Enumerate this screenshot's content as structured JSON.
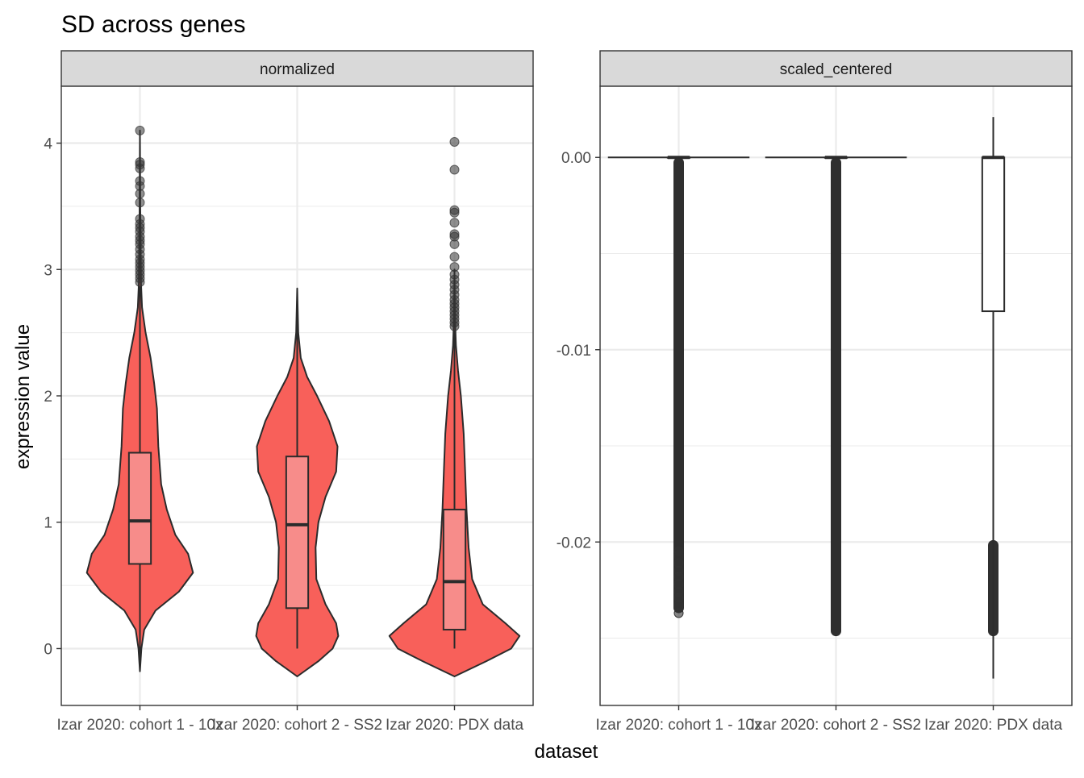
{
  "title": "SD across genes",
  "xlabel": "dataset",
  "ylabel": "expression value",
  "colors": {
    "violin_fill": "#F8605A",
    "box_fill": "#F78C8A",
    "outline": "#2B2B2B",
    "strip_bg": "#D9D9D9",
    "grid": "#EBEBEB"
  },
  "chart_data": [
    {
      "type": "violin",
      "panel": "normalized",
      "categories": [
        "Izar 2020: cohort 1 - 10x",
        "Izar 2020: cohort 2 - SS2",
        "Izar 2020: PDX data"
      ],
      "ylim": [
        -0.45,
        4.45
      ],
      "yticks": [
        0,
        1,
        2,
        3,
        4
      ],
      "grid": true,
      "violins": [
        {
          "min": -0.18,
          "max": 4.1,
          "profile": [
            [
              -0.18,
              0.0
            ],
            [
              0.0,
              0.02
            ],
            [
              0.15,
              0.06
            ],
            [
              0.3,
              0.22
            ],
            [
              0.45,
              0.55
            ],
            [
              0.6,
              0.75
            ],
            [
              0.75,
              0.68
            ],
            [
              0.9,
              0.5
            ],
            [
              1.1,
              0.38
            ],
            [
              1.3,
              0.3
            ],
            [
              1.6,
              0.26
            ],
            [
              1.9,
              0.24
            ],
            [
              2.1,
              0.2
            ],
            [
              2.3,
              0.15
            ],
            [
              2.5,
              0.08
            ],
            [
              2.7,
              0.03
            ],
            [
              2.9,
              0.015
            ],
            [
              3.5,
              0.005
            ],
            [
              4.1,
              0.0
            ]
          ]
        },
        {
          "min": -0.22,
          "max": 2.85,
          "profile": [
            [
              -0.22,
              0.0
            ],
            [
              -0.1,
              0.3
            ],
            [
              0.0,
              0.5
            ],
            [
              0.1,
              0.58
            ],
            [
              0.2,
              0.55
            ],
            [
              0.35,
              0.4
            ],
            [
              0.55,
              0.27
            ],
            [
              0.8,
              0.26
            ],
            [
              1.0,
              0.3
            ],
            [
              1.2,
              0.4
            ],
            [
              1.4,
              0.55
            ],
            [
              1.6,
              0.57
            ],
            [
              1.8,
              0.45
            ],
            [
              2.0,
              0.28
            ],
            [
              2.15,
              0.14
            ],
            [
              2.3,
              0.05
            ],
            [
              2.5,
              0.015
            ],
            [
              2.85,
              0.0
            ]
          ]
        },
        {
          "min": -0.22,
          "max": 4.0,
          "profile": [
            [
              -0.22,
              0.0
            ],
            [
              -0.1,
              0.45
            ],
            [
              0.0,
              0.8
            ],
            [
              0.1,
              0.92
            ],
            [
              0.2,
              0.72
            ],
            [
              0.35,
              0.4
            ],
            [
              0.55,
              0.25
            ],
            [
              0.8,
              0.2
            ],
            [
              1.1,
              0.17
            ],
            [
              1.4,
              0.15
            ],
            [
              1.7,
              0.13
            ],
            [
              2.0,
              0.09
            ],
            [
              2.2,
              0.05
            ],
            [
              2.4,
              0.02
            ],
            [
              2.6,
              0.008
            ],
            [
              3.0,
              0.0
            ]
          ]
        }
      ],
      "boxes": [
        {
          "q1": 0.67,
          "median": 1.01,
          "q3": 1.55,
          "whisker_low": -0.18,
          "whisker_high": 2.87,
          "outliers": [
            2.9,
            2.93,
            2.96,
            2.99,
            3.02,
            3.05,
            3.08,
            3.12,
            3.16,
            3.2,
            3.23,
            3.26,
            3.3,
            3.33,
            3.36,
            3.4,
            3.53,
            3.6,
            3.66,
            3.7,
            3.8,
            3.83,
            3.85,
            4.1
          ]
        },
        {
          "q1": 0.32,
          "median": 0.98,
          "q3": 1.52,
          "whisker_low": 0.0,
          "whisker_high": 2.84,
          "outliers": []
        },
        {
          "q1": 0.15,
          "median": 0.53,
          "q3": 1.1,
          "whisker_low": 0.0,
          "whisker_high": 2.52,
          "outliers": [
            2.55,
            2.58,
            2.61,
            2.64,
            2.67,
            2.7,
            2.73,
            2.76,
            2.8,
            2.84,
            2.88,
            2.92,
            2.96,
            3.02,
            3.1,
            3.2,
            3.26,
            3.28,
            3.37,
            3.45,
            3.47,
            3.79,
            4.01
          ]
        }
      ]
    },
    {
      "type": "box",
      "panel": "scaled_centered",
      "categories": [
        "Izar 2020: cohort 1 - 10x",
        "Izar 2020: cohort 2 - SS2",
        "Izar 2020: PDX data"
      ],
      "ylim": [
        -0.0285,
        0.0037
      ],
      "yticks": [
        0.0,
        -0.01,
        -0.02
      ],
      "ytick_labels": [
        "0.00",
        "-0.01",
        "-0.02"
      ],
      "grid": true,
      "violins": [
        {
          "flat_at": 0.0,
          "max_half_width": 0.9
        },
        {
          "flat_at": 0.0,
          "max_half_width": 0.9
        },
        null
      ],
      "boxes": [
        {
          "q1": 0.0,
          "median": 0.0,
          "q3": 0.0,
          "whisker_low": 0.0,
          "whisker_high": 0.0,
          "outlier_range": [
            -0.0237,
            0.0
          ],
          "outlier_scattered": [
            -0.0237,
            -0.0233,
            -0.0229,
            -0.0226,
            -0.0222,
            -0.0218,
            -0.0215,
            -0.0211,
            -0.0207,
            -0.0205
          ]
        },
        {
          "q1": 0.0,
          "median": 0.0,
          "q3": 0.0,
          "whisker_low": 0.0,
          "whisker_high": 0.0,
          "outlier_range": [
            -0.0249,
            0.0
          ],
          "outlier_scattered": []
        },
        {
          "q1": -0.008,
          "median": 0.0,
          "q3": 0.0,
          "whisker_low": -0.0271,
          "whisker_high": 0.0021,
          "outlier_range": [
            -0.0249,
            -0.0199
          ],
          "outlier_scattered": []
        }
      ]
    }
  ]
}
